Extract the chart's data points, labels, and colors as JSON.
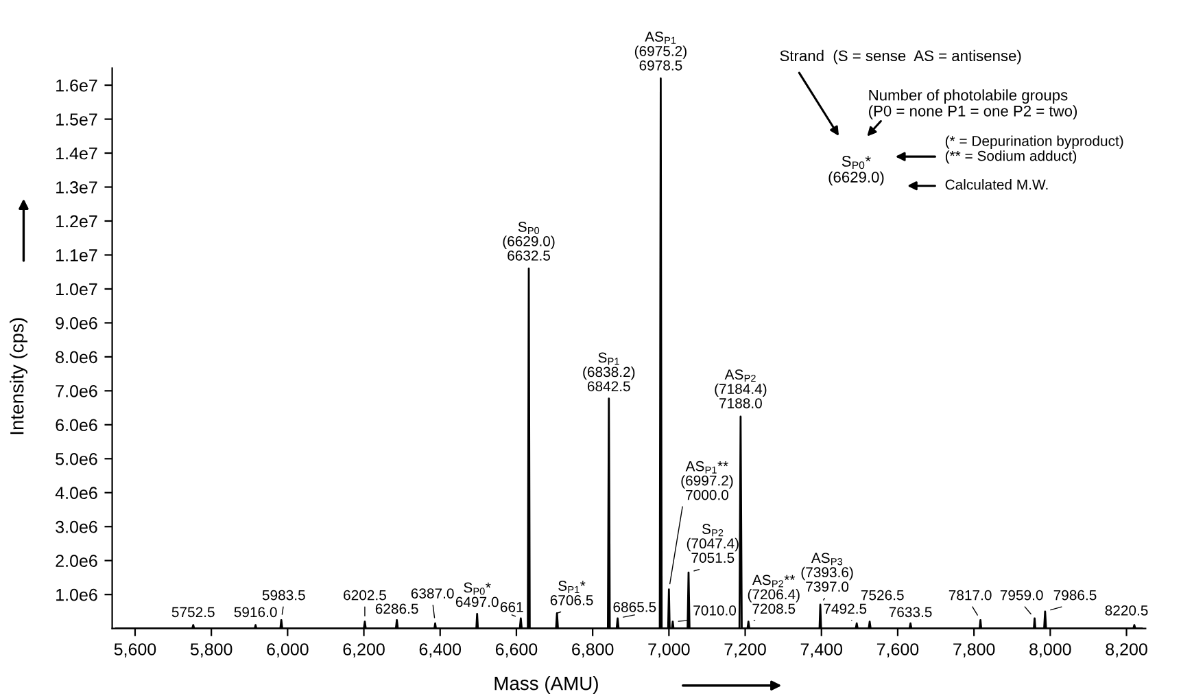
{
  "chart_data": {
    "type": "line",
    "xlabel": "Mass (AMU)",
    "ylabel": "Intensity (cps)",
    "xlim": [
      5540,
      8250
    ],
    "ylim": [
      0,
      16500000
    ],
    "xticks": [
      {
        "value": 5600,
        "label": "5,600"
      },
      {
        "value": 5800,
        "label": "5,800"
      },
      {
        "value": 6000,
        "label": "6,000"
      },
      {
        "value": 6200,
        "label": "6,200"
      },
      {
        "value": 6400,
        "label": "6,400"
      },
      {
        "value": 6600,
        "label": "6,600"
      },
      {
        "value": 6800,
        "label": "6,800"
      },
      {
        "value": 7000,
        "label": "7,000"
      },
      {
        "value": 7200,
        "label": "7,200"
      },
      {
        "value": 7400,
        "label": "7,400"
      },
      {
        "value": 7600,
        "label": "7,600"
      },
      {
        "value": 7800,
        "label": "7,800"
      },
      {
        "value": 8000,
        "label": "8,000"
      },
      {
        "value": 8200,
        "label": "8,200"
      }
    ],
    "yticks": [
      {
        "value": 1000000,
        "label": "1.0e6"
      },
      {
        "value": 2000000,
        "label": "2.0e6"
      },
      {
        "value": 3000000,
        "label": "3.0e6"
      },
      {
        "value": 4000000,
        "label": "4.0e6"
      },
      {
        "value": 5000000,
        "label": "5.0e6"
      },
      {
        "value": 6000000,
        "label": "6.0e6"
      },
      {
        "value": 7000000,
        "label": "7.0e6"
      },
      {
        "value": 8000000,
        "label": "8.0e6"
      },
      {
        "value": 9000000,
        "label": "9.0e6"
      },
      {
        "value": 10000000,
        "label": "1.0e7"
      },
      {
        "value": 11000000,
        "label": "1.1e7"
      },
      {
        "value": 12000000,
        "label": "1.2e7"
      },
      {
        "value": 13000000,
        "label": "1.3e7"
      },
      {
        "value": 14000000,
        "label": "1.4e7"
      },
      {
        "value": 15000000,
        "label": "1.5e7"
      },
      {
        "value": 16000000,
        "label": "1.6e7"
      }
    ],
    "series": [
      {
        "color": "#000000",
        "x": [
          5550,
          5750,
          5752.5,
          5755,
          5914,
          5916,
          5918,
          5981,
          5983.5,
          5986,
          6200,
          6202.5,
          6205,
          6284,
          6286.5,
          6289,
          6385,
          6387,
          6389,
          6495,
          6497,
          6499,
          6609,
          6611.5,
          6614,
          6630,
          6632.5,
          6635,
          6704,
          6706.5,
          6709,
          6840,
          6842.5,
          6845,
          6863,
          6865.5,
          6868,
          6976,
          6978.5,
          6981,
          6998,
          7000,
          7002,
          7008,
          7010,
          7012,
          7049,
          7051.5,
          7054,
          7185,
          7188,
          7191,
          7206,
          7208.5,
          7211,
          7395,
          7397,
          7399,
          7490,
          7492.5,
          7495,
          7524,
          7526.5,
          7529,
          7631,
          7633.5,
          7636,
          7815,
          7817,
          7819,
          7957,
          7959,
          7961,
          7984,
          7986.5,
          7989,
          8218,
          8220.5,
          8223,
          8240
        ],
        "values": [
          0,
          0,
          100000,
          0,
          0,
          100000,
          0,
          0,
          250000,
          0,
          0,
          200000,
          0,
          0,
          250000,
          0,
          0,
          150000,
          0,
          0,
          430000,
          0,
          0,
          300000,
          0,
          0,
          10600000,
          0,
          0,
          450000,
          0,
          0,
          6770000,
          0,
          0,
          300000,
          0,
          0,
          16200000,
          0,
          0,
          1150000,
          0,
          0,
          200000,
          0,
          0,
          1650000,
          0,
          0,
          6240000,
          0,
          0,
          200000,
          0,
          0,
          700000,
          0,
          0,
          150000,
          0,
          0,
          200000,
          0,
          0,
          150000,
          0,
          0,
          250000,
          0,
          0,
          300000,
          0,
          0,
          500000,
          0,
          0,
          100000,
          0,
          0
        ]
      }
    ],
    "annotations": [
      {
        "text": "S$_{P0}$\n(6629.0)\n6632.5",
        "x": 6632.5,
        "y": 10600000
      },
      {
        "text": "AS$_{P1}$\n(6975.2)\n6978.5",
        "x": 6978.5,
        "y": 16200000
      },
      {
        "text": "S$_{P1}$\n(6838.2)\n6842.5",
        "x": 6842.5,
        "y": 6770000
      },
      {
        "text": "AS$_{P2}$\n(7184.4)\n7188.0",
        "x": 7188.0,
        "y": 6240000
      },
      {
        "text": "S$_{P2}$\n(7047.4)\n7051.5",
        "x": 7051.5,
        "y": 1650000
      },
      {
        "text": "AS$_{P1}$**\n(6997.2)\n7000.0",
        "x": 7000.0,
        "y": 1150000
      },
      {
        "text": "AS$_{P2}$**\n(7206.4)\n7208.5",
        "x": 7208.5,
        "y": 200000
      },
      {
        "text": "AS$_{P3}$\n(7393.6)\n7397.0",
        "x": 7397.0,
        "y": 700000
      },
      {
        "text": "S$_{P0}$*\n6497.0",
        "x": 6497.0,
        "y": 430000
      },
      {
        "text": "S$_{P1}$*\n6706.5",
        "x": 6706.5,
        "y": 450000
      },
      {
        "text": "6865.5",
        "x": 6865.5,
        "y": 300000
      },
      {
        "text": "661",
        "x": 6611.5,
        "y": 300000
      },
      {
        "text": "7010.0",
        "x": 7010.0,
        "y": 200000
      },
      {
        "text": "5752.5",
        "x": 5752.5,
        "y": 100000
      },
      {
        "text": "5916.0",
        "x": 5916.0,
        "y": 100000
      },
      {
        "text": "5983.5",
        "x": 5983.5,
        "y": 250000
      },
      {
        "text": "6202.5",
        "x": 6202.5,
        "y": 200000
      },
      {
        "text": "6286.5",
        "x": 6286.5,
        "y": 250000
      },
      {
        "text": "6387.0",
        "x": 6387.0,
        "y": 150000
      },
      {
        "text": "7492.5",
        "x": 7492.5,
        "y": 150000
      },
      {
        "text": "7526.5",
        "x": 7526.5,
        "y": 200000
      },
      {
        "text": "7633.5",
        "x": 7633.5,
        "y": 150000
      },
      {
        "text": "7817.0",
        "x": 7817.0,
        "y": 250000
      },
      {
        "text": "7959.0",
        "x": 7959.0,
        "y": 300000
      },
      {
        "text": "7986.5",
        "x": 7986.5,
        "y": 500000
      },
      {
        "text": "8220.5",
        "x": 8220.5,
        "y": 100000
      },
      "Strand  (S = sense  AS = antisense)",
      "Number of photolabile groups\n(P0 = none P1 = one P2 = two)",
      "S$_{P0}$*\n(6629.0)",
      "(* = Depurination byproduct)\n(** = Sodium adduct)",
      "Calculated M.W."
    ]
  }
}
